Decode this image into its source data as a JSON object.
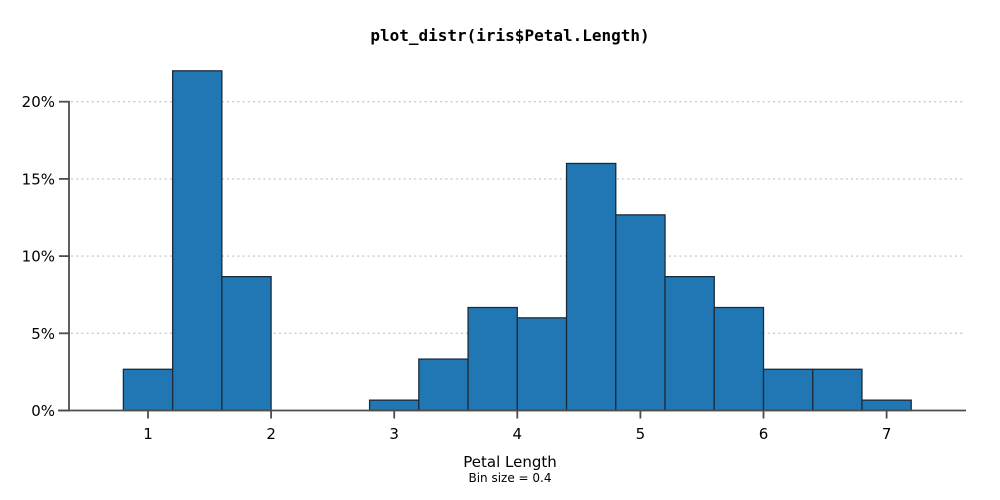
{
  "chart_data": {
    "type": "histogram",
    "title": "plot_distr(iris$Petal.Length)",
    "xlabel": "Petal Length",
    "caption": "Bin size = 0.4",
    "bin_size": 0.4,
    "ylabel": "",
    "y_unit": "percent",
    "grid": "horizontal-dotted",
    "legend": "none",
    "xlim": [
      0.27,
      7.65
    ],
    "ylim": [
      0,
      22.3
    ],
    "bins": [
      {
        "start": 0.8,
        "end": 1.2,
        "percent": 2.67
      },
      {
        "start": 1.2,
        "end": 1.6,
        "percent": 22.0
      },
      {
        "start": 1.6,
        "end": 2.0,
        "percent": 8.67
      },
      {
        "start": 2.0,
        "end": 2.4,
        "percent": 0
      },
      {
        "start": 2.4,
        "end": 2.8,
        "percent": 0
      },
      {
        "start": 2.8,
        "end": 3.2,
        "percent": 0.67
      },
      {
        "start": 3.2,
        "end": 3.6,
        "percent": 3.33
      },
      {
        "start": 3.6,
        "end": 4.0,
        "percent": 6.67
      },
      {
        "start": 4.0,
        "end": 4.4,
        "percent": 6.0
      },
      {
        "start": 4.4,
        "end": 4.8,
        "percent": 16.0
      },
      {
        "start": 4.8,
        "end": 5.2,
        "percent": 12.67
      },
      {
        "start": 5.2,
        "end": 5.6,
        "percent": 8.67
      },
      {
        "start": 5.6,
        "end": 6.0,
        "percent": 6.67
      },
      {
        "start": 6.0,
        "end": 6.4,
        "percent": 2.67
      },
      {
        "start": 6.4,
        "end": 6.8,
        "percent": 2.67
      },
      {
        "start": 6.8,
        "end": 7.2,
        "percent": 0.67
      }
    ],
    "y_ticks": [
      {
        "value": 0,
        "label": "0%"
      },
      {
        "value": 5,
        "label": "5%"
      },
      {
        "value": 10,
        "label": "10%"
      },
      {
        "value": 15,
        "label": "15%"
      },
      {
        "value": 20,
        "label": "20%"
      }
    ],
    "x_ticks": [
      {
        "value": 1,
        "label": "1"
      },
      {
        "value": 2,
        "label": "2"
      },
      {
        "value": 3,
        "label": "3"
      },
      {
        "value": 4,
        "label": "4"
      },
      {
        "value": 5,
        "label": "5"
      },
      {
        "value": 6,
        "label": "6"
      },
      {
        "value": 7,
        "label": "7"
      }
    ],
    "colors": {
      "bar_fill": "#2077b4",
      "bar_edge": "#1c2b3a",
      "grid": "#c9c9c9",
      "axis": "#4d4d4d",
      "text": "#000000",
      "background": "#ffffff"
    }
  }
}
